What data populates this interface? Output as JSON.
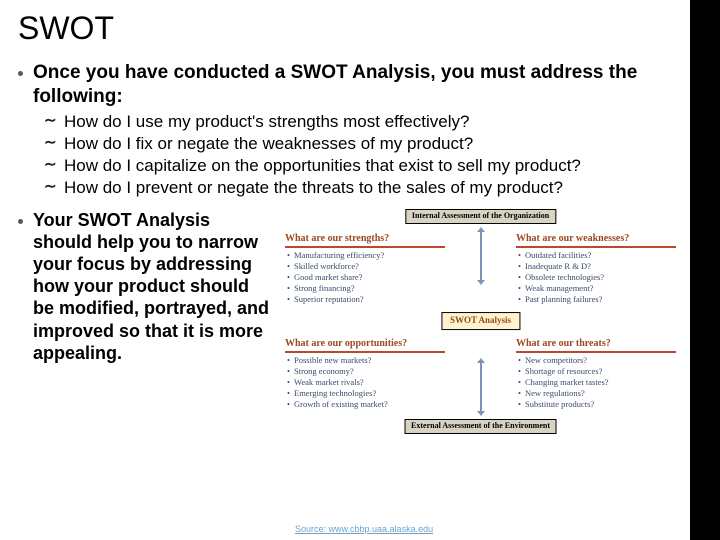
{
  "title": "SWOT",
  "point1_lead": "Once you have conducted a SWOT Analysis, you must address the following:",
  "sub_items": [
    "How do I use my product's strengths most effectively?",
    "How do I fix or negate the weaknesses of my product?",
    "How do I capitalize on the opportunities that exist to sell my product?",
    "How do I prevent or negate the threats to the sales of my product?"
  ],
  "point2": "Your SWOT Analysis should help you to narrow your focus by addressing how your product should be modified, portrayed, and improved so that it is more appealing.",
  "diagram": {
    "internal_label": "Internal Assessment of the Organization",
    "external_label": "External Assessment of the Environment",
    "center": "SWOT Analysis",
    "quads": {
      "tl": {
        "heading": "What are our strengths?",
        "items": [
          "Manufacturing efficiency?",
          "Skilled workforce?",
          "Good market share?",
          "Strong financing?",
          "Superior reputation?"
        ]
      },
      "tr": {
        "heading": "What are our weaknesses?",
        "items": [
          "Outdated facilities?",
          "Inadequate R & D?",
          "Obsolete technologies?",
          "Weak management?",
          "Past planning failures?"
        ]
      },
      "bl": {
        "heading": "What are our opportunities?",
        "items": [
          "Possible new markets?",
          "Strong economy?",
          "Weak market rivals?",
          "Emerging technologies?",
          "Growth of existing market?"
        ]
      },
      "br": {
        "heading": "What are our threats?",
        "items": [
          "New competitors?",
          "Shortage of resources?",
          "Changing market tastes?",
          "New regulations?",
          "Substitute products?"
        ]
      }
    }
  },
  "source": "Source: www.cbbp.uaa.alaska.edu",
  "colors": {
    "quad_heading": "#9b4820",
    "quad_rule": "#b94a2e",
    "quad_text": "#3a4a6b",
    "arrow": "#7f92bb",
    "center_bg": "#fdf3cf",
    "label_bg": "#d9d3c1",
    "source_link": "#6aa4cf"
  }
}
